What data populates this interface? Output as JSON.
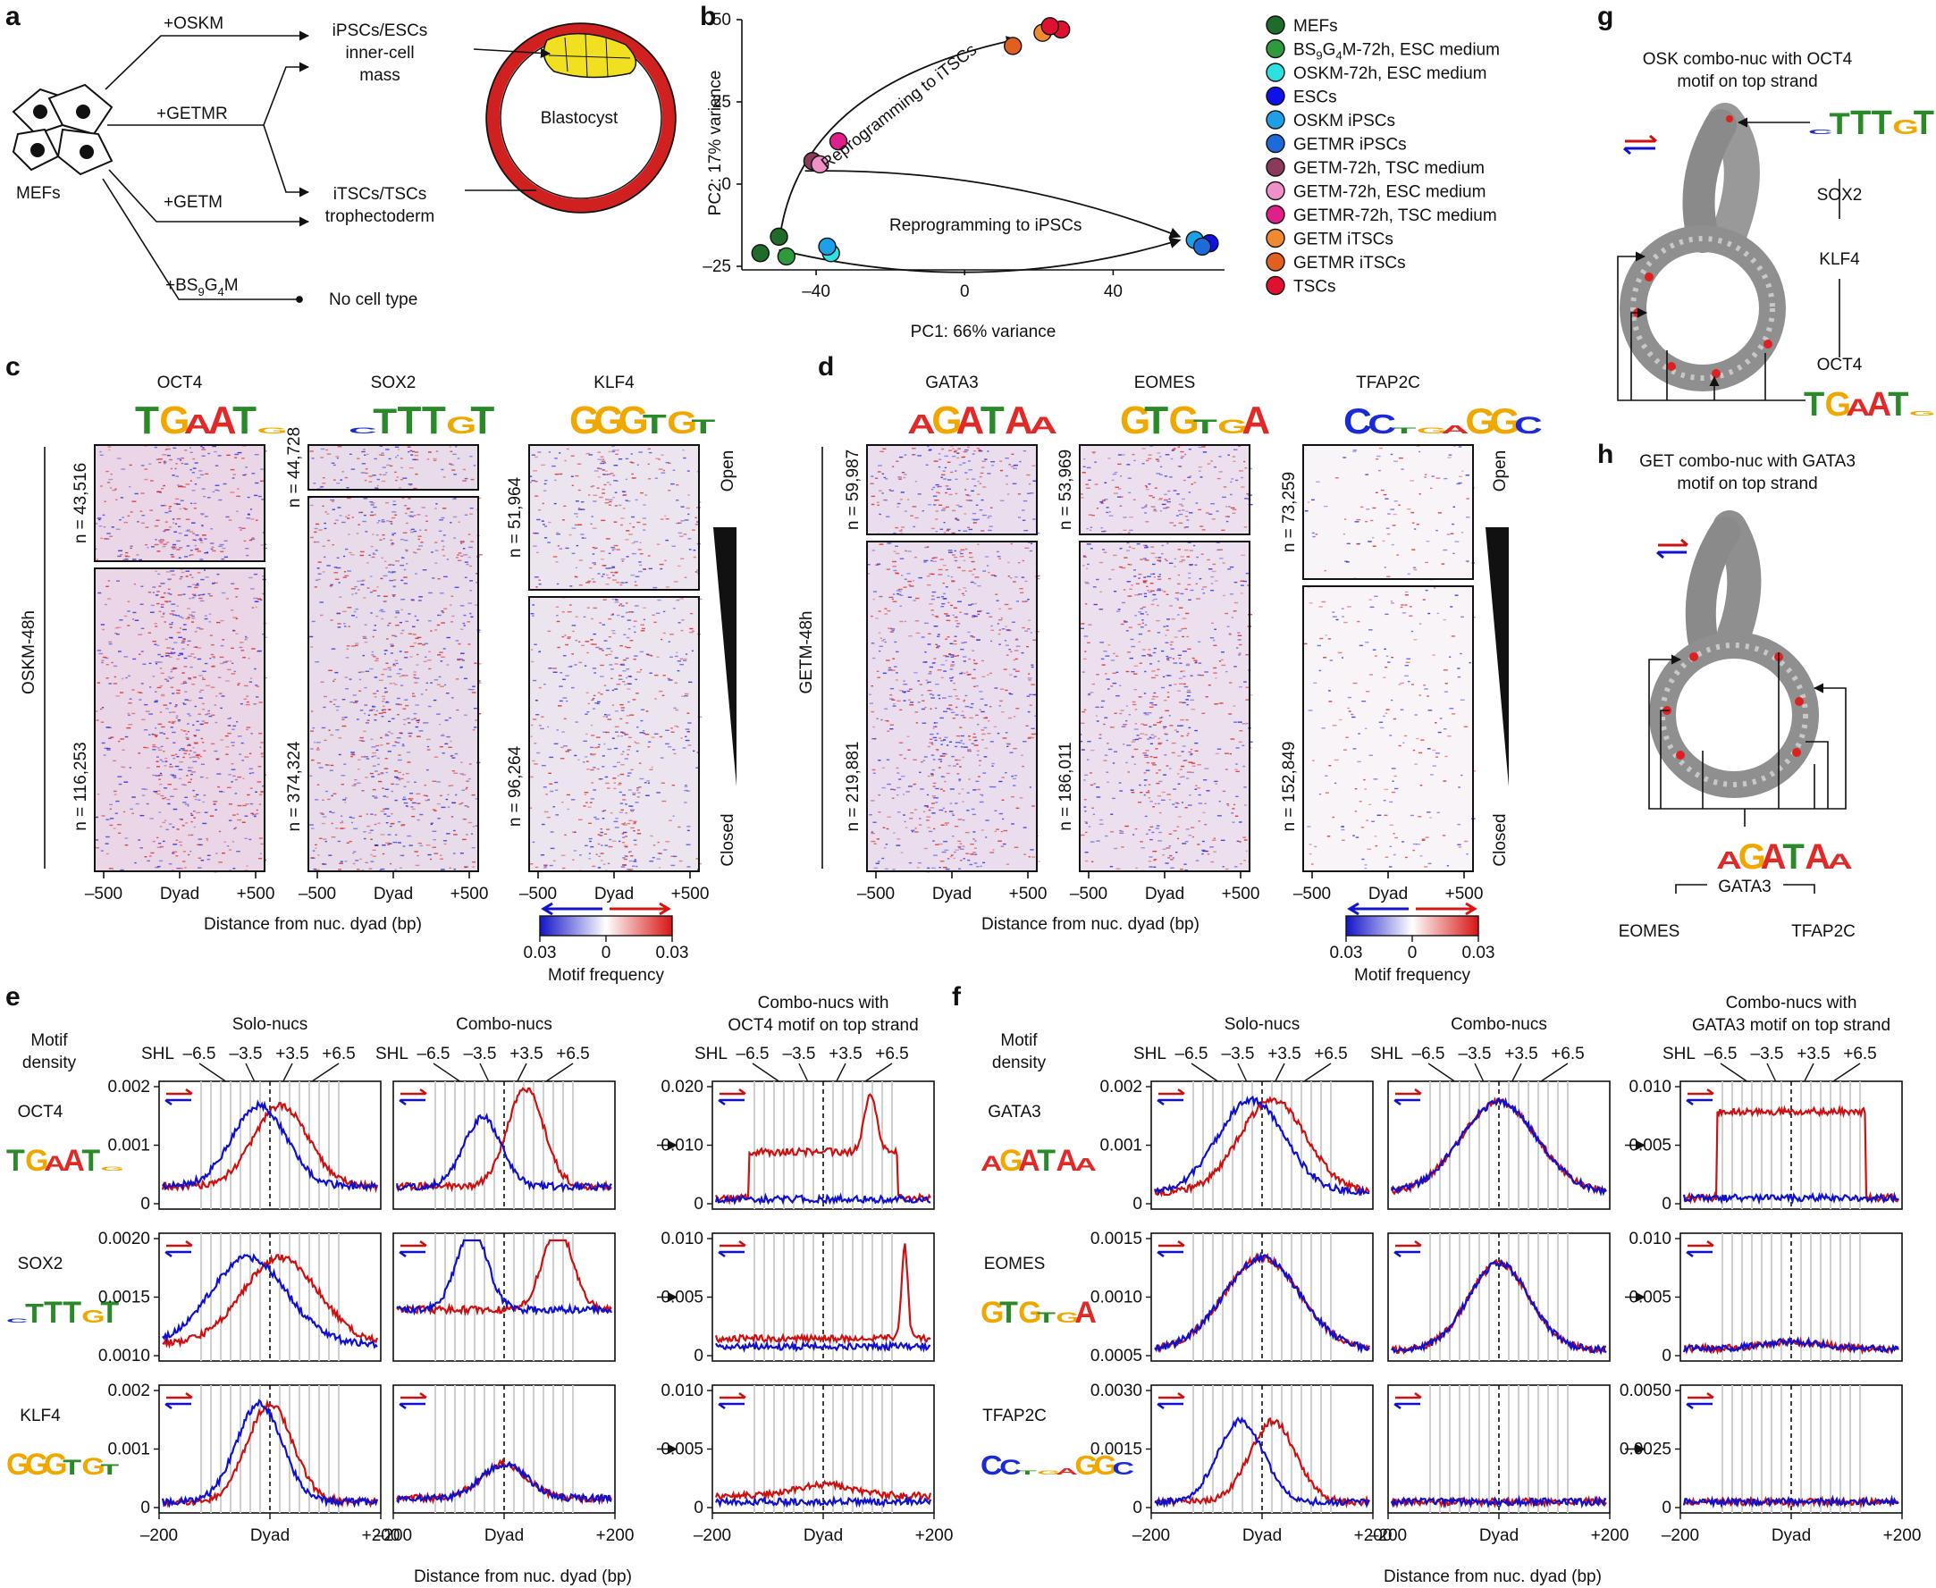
{
  "panels": {
    "a": {
      "letter": "a",
      "mefs": "MEFs",
      "arrows": [
        "+OSKM",
        "+GETMR",
        "+GETM",
        "+BS9G4M"
      ],
      "bs_label": {
        "b": "+BS",
        "s1": "9",
        "g": "G",
        "s2": "4",
        "m": "M"
      },
      "targets": {
        "ipsc_line1": "iPSCs/ESCs",
        "ipsc_line2": "inner-cell",
        "ipsc_line3": "mass",
        "itsc_line1": "iTSCs/TSCs",
        "itsc_line2": "trophectoderm",
        "none": "No cell type"
      },
      "blastocyst": "Blastocyst"
    },
    "b": {
      "letter": "b",
      "arrow_label_itsc": "Reprogramming to iTSCs",
      "arrow_label_ipsc": "Reprogramming to iPSCs",
      "legend": [
        {
          "label": "MEFs",
          "color": "#1e6b2a"
        },
        {
          "label": "BS9G4M-72h, ESC medium",
          "color": "#2f9a3c"
        },
        {
          "label": "OSKM-72h, ESC medium",
          "color": "#2fe0e0"
        },
        {
          "label": "ESCs",
          "color": "#1010e8"
        },
        {
          "label": "OSKM iPSCs",
          "color": "#1ea0e8"
        },
        {
          "label": "GETMR iPSCs",
          "color": "#1e6ad8"
        },
        {
          "label": "GETM-72h, TSC medium",
          "color": "#8a3a5a"
        },
        {
          "label": "GETM-72h, ESC medium",
          "color": "#f090c8"
        },
        {
          "label": "GETMR-72h, TSC medium",
          "color": "#e0208a"
        },
        {
          "label": "GETM iTSCs",
          "color": "#f08a30"
        },
        {
          "label": "GETMR iTSCs",
          "color": "#e06020"
        },
        {
          "label": "TSCs",
          "color": "#e01030"
        }
      ]
    },
    "c": {
      "letter": "c",
      "group": "OSKM-48h",
      "xlabel": "Distance from nuc. dyad (bp)",
      "columns": [
        {
          "tf": "OCT4",
          "n_open": "n = 43,516",
          "n_closed": "n = 116,253"
        },
        {
          "tf": "SOX2",
          "n_open": "n = 44,728",
          "n_closed": "n = 374,324"
        },
        {
          "tf": "KLF4",
          "n_open": "n = 51,964",
          "n_closed": "n = 96,264"
        }
      ],
      "ticks": [
        "–500",
        "Dyad",
        "+500"
      ],
      "open": "Open",
      "closed": "Closed",
      "scale_ticks": [
        "0.03",
        "0",
        "0.03"
      ],
      "scale_label": "Motif frequency"
    },
    "d": {
      "letter": "d",
      "group": "GETM-48h",
      "xlabel": "Distance from nuc. dyad (bp)",
      "columns": [
        {
          "tf": "GATA3",
          "n_open": "n = 59,987",
          "n_closed": "n = 219,881"
        },
        {
          "tf": "EOMES",
          "n_open": "n = 53,969",
          "n_closed": "n = 186,011"
        },
        {
          "tf": "TFAP2C",
          "n_open": "n = 73,259",
          "n_closed": "n = 152,849"
        }
      ],
      "ticks": [
        "–500",
        "Dyad",
        "+500"
      ],
      "open": "Open",
      "closed": "Closed",
      "scale_ticks": [
        "0.03",
        "0",
        "0.03"
      ],
      "scale_label": "Motif frequency"
    },
    "e": {
      "letter": "e",
      "motif_density": "Motif\ndensity",
      "col_titles": [
        "Solo-nucs",
        "Combo-nucs",
        "Combo-nucs with",
        "OCT4 motif on top strand"
      ],
      "shl": "SHL",
      "shl_ticks": [
        "–6.5",
        "–3.5",
        "+3.5",
        "+6.5"
      ],
      "rows": [
        {
          "tf": "OCT4",
          "y1": [
            "0.002",
            "0.001",
            "0"
          ],
          "y3": [
            "0.020",
            "0.010",
            "0"
          ]
        },
        {
          "tf": "SOX2",
          "y1": [
            "0.0020",
            "0.0015",
            "0.0010"
          ],
          "y3": [
            "0.010",
            "0.005",
            "0"
          ]
        },
        {
          "tf": "KLF4",
          "y1": [
            "0.002",
            "0.001",
            "0"
          ],
          "y3": [
            "0.010",
            "0.005",
            "0"
          ]
        }
      ],
      "xticks": [
        "–200",
        "Dyad",
        "+200"
      ],
      "xlabel": "Distance from nuc. dyad (bp)"
    },
    "f": {
      "letter": "f",
      "motif_density": "Motif\ndensity",
      "col_titles": [
        "Solo-nucs",
        "Combo-nucs",
        "Combo-nucs with",
        "GATA3 motif on top strand"
      ],
      "shl": "SHL",
      "shl_ticks": [
        "–6.5",
        "–3.5",
        "+3.5",
        "+6.5"
      ],
      "rows": [
        {
          "tf": "GATA3",
          "y1": [
            "0.002",
            "0.001",
            "0"
          ],
          "y3": [
            "0.010",
            "0.005",
            "0"
          ]
        },
        {
          "tf": "EOMES",
          "y1": [
            "0.0015",
            "0.0010",
            "0.0005"
          ],
          "y3": [
            "0.010",
            "0.005",
            "0"
          ]
        },
        {
          "tf": "TFAP2C",
          "y1": [
            "0.0030",
            "0.0015",
            "0"
          ],
          "y3": [
            "0.0050",
            "0.0025",
            "0"
          ]
        }
      ],
      "xticks": [
        "–200",
        "Dyad",
        "+200"
      ],
      "xlabel": "Distance from nuc. dyad (bp)"
    },
    "g": {
      "letter": "g",
      "title1": "OSK combo-nuc with OCT4",
      "title2": "motif on top strand",
      "labels": [
        "SOX2",
        "KLF4",
        "OCT4"
      ]
    },
    "h": {
      "letter": "h",
      "title1": "GET combo-nuc with GATA3",
      "title2": "motif on top strand",
      "labels": [
        "GATA3",
        "EOMES",
        "TFAP2C"
      ]
    }
  },
  "chart_data": [
    {
      "type": "scatter",
      "title": "",
      "xlabel": "PC1: 66% variance",
      "ylabel": "PC2: 17% variance",
      "xlim": [
        -60,
        70
      ],
      "ylim": [
        -25,
        50
      ],
      "xticks": [
        -40,
        0,
        40
      ],
      "yticks": [
        -25,
        0,
        25,
        50
      ],
      "legend_position": "right",
      "series": [
        {
          "name": "MEFs",
          "color": "#1e6b2a",
          "points": [
            [
              -55,
              -21
            ],
            [
              -50,
              -16
            ]
          ]
        },
        {
          "name": "BS9G4M-72h, ESC medium",
          "color": "#2f9a3c",
          "points": [
            [
              -48,
              -22
            ]
          ]
        },
        {
          "name": "OSKM-72h, ESC medium",
          "color": "#2fe0e0",
          "points": [
            [
              -36,
              -21
            ]
          ]
        },
        {
          "name": "ESCs",
          "color": "#1010e8",
          "points": [
            [
              66,
              -18
            ]
          ]
        },
        {
          "name": "OSKM iPSCs",
          "color": "#1ea0e8",
          "points": [
            [
              -37,
              -19
            ],
            [
              62,
              -17
            ]
          ]
        },
        {
          "name": "GETMR iPSCs",
          "color": "#1e6ad8",
          "points": [
            [
              64,
              -19
            ]
          ]
        },
        {
          "name": "GETM-72h, TSC medium",
          "color": "#8a3a5a",
          "points": [
            [
              -41,
              7
            ]
          ]
        },
        {
          "name": "GETM-72h, ESC medium",
          "color": "#f090c8",
          "points": [
            [
              -39,
              6
            ]
          ]
        },
        {
          "name": "GETMR-72h, TSC medium",
          "color": "#e0208a",
          "points": [
            [
              -34,
              13
            ]
          ]
        },
        {
          "name": "GETM iTSCs",
          "color": "#f08a30",
          "points": [
            [
              21,
              46
            ]
          ]
        },
        {
          "name": "GETMR iTSCs",
          "color": "#e06020",
          "points": [
            [
              13,
              42
            ]
          ]
        },
        {
          "name": "TSCs",
          "color": "#e01030",
          "points": [
            [
              26,
              47
            ],
            [
              23,
              48
            ]
          ]
        }
      ]
    },
    {
      "type": "line",
      "panel": "e",
      "row": "OCT4",
      "column": "Solo-nucs",
      "x": [
        -200,
        200
      ],
      "ylim": [
        0,
        0.002
      ],
      "series": [
        {
          "name": "top strand",
          "color": "#cc1111",
          "peak": 0.0017
        },
        {
          "name": "bottom strand",
          "color": "#1111cc",
          "peak": 0.0016
        }
      ]
    },
    {
      "type": "line",
      "panel": "e",
      "row": "OCT4",
      "column": "Combo-nucs",
      "x": [
        -200,
        200
      ],
      "ylim": [
        0,
        0.002
      ],
      "series": [
        {
          "name": "top strand",
          "color": "#cc1111",
          "peak": 0.0018
        },
        {
          "name": "bottom strand",
          "color": "#1111cc",
          "peak": 0.0013
        }
      ]
    },
    {
      "type": "line",
      "panel": "e",
      "row": "OCT4",
      "column": "Combo-nucs with OCT4 motif on top strand",
      "x": [
        -200,
        200
      ],
      "ylim": [
        0,
        0.02
      ],
      "series": [
        {
          "name": "top strand",
          "color": "#cc1111",
          "peak": 0.018
        },
        {
          "name": "bottom strand",
          "color": "#1111cc",
          "peak": 0.0015
        }
      ]
    },
    {
      "type": "line",
      "panel": "f",
      "row": "GATA3",
      "column": "Combo-nucs with GATA3 motif on top strand",
      "x": [
        -200,
        200
      ],
      "ylim": [
        0,
        0.01
      ],
      "series": [
        {
          "name": "top strand",
          "color": "#cc1111",
          "peak": 0.009
        },
        {
          "name": "bottom strand",
          "color": "#1111cc",
          "peak": 0.001
        }
      ]
    }
  ]
}
